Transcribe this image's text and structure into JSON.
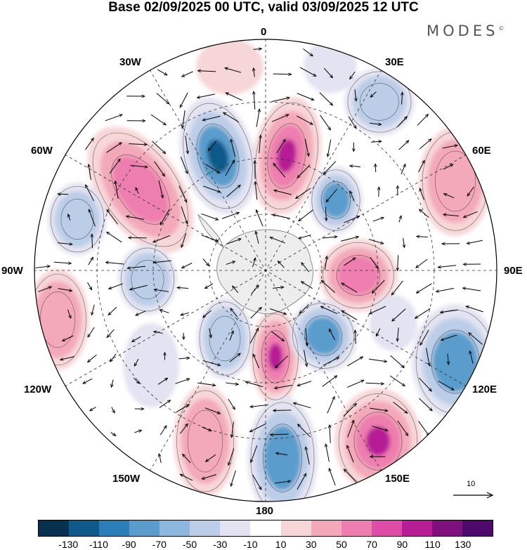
{
  "title": "Base 02/09/2025 00 UTC, valid 03/09/2025 12 UTC",
  "brand": "MODES",
  "brand_mark": "©",
  "longitude_labels": {
    "lon_0": "0",
    "lon_30e": "30E",
    "lon_60e": "60E",
    "lon_90e": "90E",
    "lon_120e": "120E",
    "lon_150e": "150E",
    "lon_180": "180",
    "lon_150w": "150W",
    "lon_120w": "120W",
    "lon_90w": "90W",
    "lon_60w": "60W",
    "lon_30w": "30W"
  },
  "reference_vector": {
    "label": "10"
  },
  "colorbar": {
    "ticks": [
      "-130",
      "-110",
      "-90",
      "-70",
      "-50",
      "-30",
      "-10",
      "10",
      "30",
      "50",
      "70",
      "90",
      "110",
      "130"
    ],
    "colors": [
      "#08304f",
      "#0f5a8a",
      "#2a7fb8",
      "#5a9dcc",
      "#8db8de",
      "#bccde8",
      "#e3e3f1",
      "#ffffff",
      "#f7d6d8",
      "#f3a9b9",
      "#ee7eaf",
      "#dd4ca6",
      "#b71e96",
      "#80107e",
      "#4e0a6a"
    ]
  },
  "colors": {
    "land": "#ededed",
    "coast": "#777777",
    "pos_light": "#f7d6d8",
    "pos_mid": "#f3a9b9",
    "pos_strong": "#ee7eaf",
    "pos_peak": "#b71e96",
    "neg_light": "#e3e3f1",
    "neg_mid": "#bccde8",
    "neg_strong": "#5a9dcc",
    "neg_peak": "#0f5a8a"
  }
}
